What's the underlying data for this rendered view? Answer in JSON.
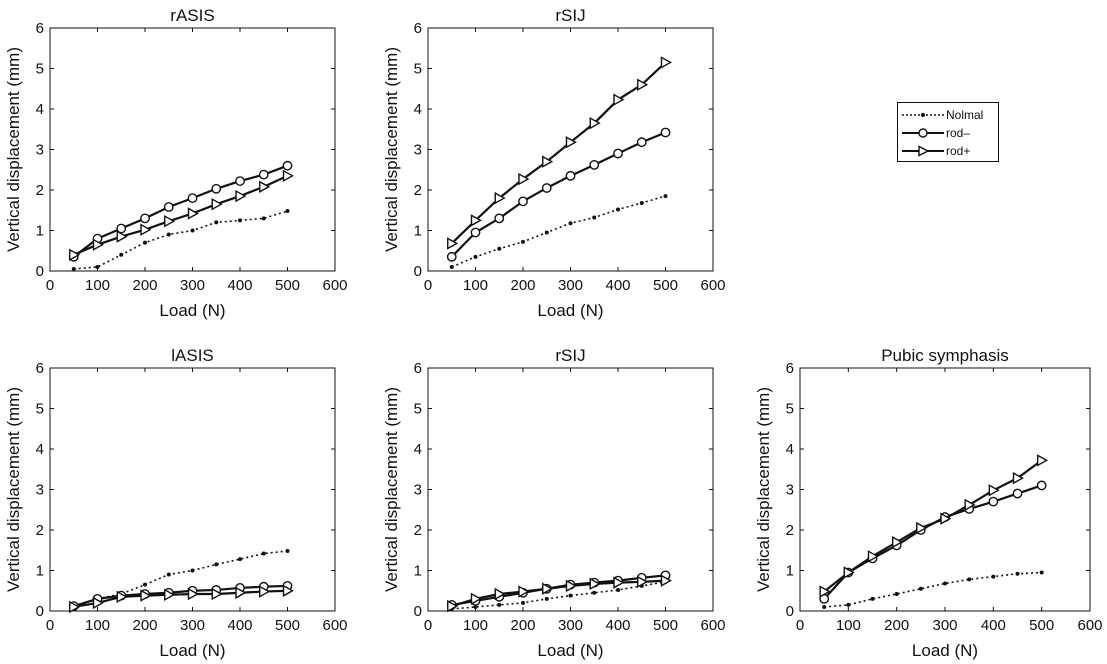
{
  "chart_data": [
    {
      "type": "line",
      "title": "rASIS",
      "xlabel": "Load (N)",
      "ylabel": "Vertical displacement (mm)",
      "xlim": [
        0,
        600
      ],
      "ylim": [
        0,
        6
      ],
      "xticks": [
        0,
        100,
        200,
        300,
        400,
        500,
        600
      ],
      "yticks": [
        0,
        1,
        2,
        3,
        4,
        5,
        6
      ],
      "x": [
        50,
        100,
        150,
        200,
        250,
        300,
        350,
        400,
        450,
        500
      ],
      "series": [
        {
          "name": "Nolmal",
          "values": [
            0.05,
            0.1,
            0.4,
            0.7,
            0.9,
            1.0,
            1.2,
            1.25,
            1.3,
            1.48
          ]
        },
        {
          "name": "rod–",
          "values": [
            0.35,
            0.8,
            1.05,
            1.3,
            1.58,
            1.8,
            2.03,
            2.22,
            2.38,
            2.6
          ]
        },
        {
          "name": "rod+",
          "values": [
            0.4,
            0.65,
            0.85,
            1.02,
            1.23,
            1.42,
            1.65,
            1.85,
            2.08,
            2.35
          ]
        }
      ]
    },
    {
      "type": "line",
      "title": "rSIJ",
      "xlabel": "Load (N)",
      "ylabel": "Vertical displacement (mm)",
      "xlim": [
        0,
        600
      ],
      "ylim": [
        0,
        6
      ],
      "xticks": [
        0,
        100,
        200,
        300,
        400,
        500,
        600
      ],
      "yticks": [
        0,
        1,
        2,
        3,
        4,
        5,
        6
      ],
      "x": [
        50,
        100,
        150,
        200,
        250,
        300,
        350,
        400,
        450,
        500
      ],
      "series": [
        {
          "name": "Nolmal",
          "values": [
            0.1,
            0.35,
            0.55,
            0.72,
            0.95,
            1.18,
            1.32,
            1.52,
            1.68,
            1.85
          ]
        },
        {
          "name": "rod–",
          "values": [
            0.35,
            0.95,
            1.3,
            1.72,
            2.05,
            2.35,
            2.62,
            2.9,
            3.18,
            3.42
          ]
        },
        {
          "name": "rod+",
          "values": [
            0.68,
            1.25,
            1.8,
            2.27,
            2.7,
            3.18,
            3.65,
            4.23,
            4.6,
            5.15
          ]
        }
      ]
    },
    {
      "type": "line",
      "title": "lASIS",
      "xlabel": "Load (N)",
      "ylabel": "Vertical displacement (mm)",
      "xlim": [
        0,
        600
      ],
      "ylim": [
        0,
        6
      ],
      "xticks": [
        0,
        100,
        200,
        300,
        400,
        500,
        600
      ],
      "yticks": [
        0,
        1,
        2,
        3,
        4,
        5,
        6
      ],
      "x": [
        50,
        100,
        150,
        200,
        250,
        300,
        350,
        400,
        450,
        500
      ],
      "series": [
        {
          "name": "Nolmal",
          "values": [
            0.1,
            0.3,
            0.42,
            0.65,
            0.9,
            1.0,
            1.15,
            1.28,
            1.42,
            1.48
          ]
        },
        {
          "name": "rod–",
          "values": [
            0.12,
            0.3,
            0.38,
            0.42,
            0.45,
            0.5,
            0.52,
            0.57,
            0.6,
            0.62
          ]
        },
        {
          "name": "rod+",
          "values": [
            0.1,
            0.2,
            0.35,
            0.38,
            0.4,
            0.42,
            0.42,
            0.45,
            0.48,
            0.5
          ]
        }
      ]
    },
    {
      "type": "line",
      "title": "rSIJ",
      "xlabel": "Load (N)",
      "ylabel": "Vertical displacement (mm)",
      "xlim": [
        0,
        600
      ],
      "ylim": [
        0,
        6
      ],
      "xticks": [
        0,
        100,
        200,
        300,
        400,
        500,
        600
      ],
      "yticks": [
        0,
        1,
        2,
        3,
        4,
        5,
        6
      ],
      "x": [
        50,
        100,
        150,
        200,
        250,
        300,
        350,
        400,
        450,
        500
      ],
      "series": [
        {
          "name": "Nolmal",
          "values": [
            0.05,
            0.1,
            0.15,
            0.2,
            0.3,
            0.38,
            0.45,
            0.52,
            0.62,
            0.72
          ]
        },
        {
          "name": "rod–",
          "values": [
            0.15,
            0.25,
            0.35,
            0.45,
            0.55,
            0.65,
            0.7,
            0.75,
            0.82,
            0.88
          ]
        },
        {
          "name": "rod+",
          "values": [
            0.12,
            0.3,
            0.42,
            0.48,
            0.55,
            0.62,
            0.67,
            0.7,
            0.72,
            0.75
          ]
        }
      ]
    },
    {
      "type": "line",
      "title": "Pubic symphasis",
      "xlabel": "Load (N)",
      "ylabel": "Vertical displacement (mm)",
      "xlim": [
        0,
        600
      ],
      "ylim": [
        0,
        6
      ],
      "xticks": [
        0,
        100,
        200,
        300,
        400,
        500,
        600
      ],
      "yticks": [
        0,
        1,
        2,
        3,
        4,
        5,
        6
      ],
      "x": [
        50,
        100,
        150,
        200,
        250,
        300,
        350,
        400,
        450,
        500
      ],
      "series": [
        {
          "name": "Nolmal",
          "values": [
            0.1,
            0.15,
            0.3,
            0.42,
            0.55,
            0.68,
            0.78,
            0.85,
            0.92,
            0.95
          ]
        },
        {
          "name": "rod–",
          "values": [
            0.3,
            0.95,
            1.3,
            1.62,
            2.0,
            2.32,
            2.52,
            2.7,
            2.9,
            3.1
          ]
        },
        {
          "name": "rod+",
          "values": [
            0.48,
            0.95,
            1.35,
            1.7,
            2.05,
            2.28,
            2.62,
            2.98,
            3.28,
            3.72
          ]
        }
      ]
    }
  ],
  "legend": {
    "placement": "right",
    "entries": [
      "Nolmal",
      "rod–",
      "rod+"
    ]
  }
}
